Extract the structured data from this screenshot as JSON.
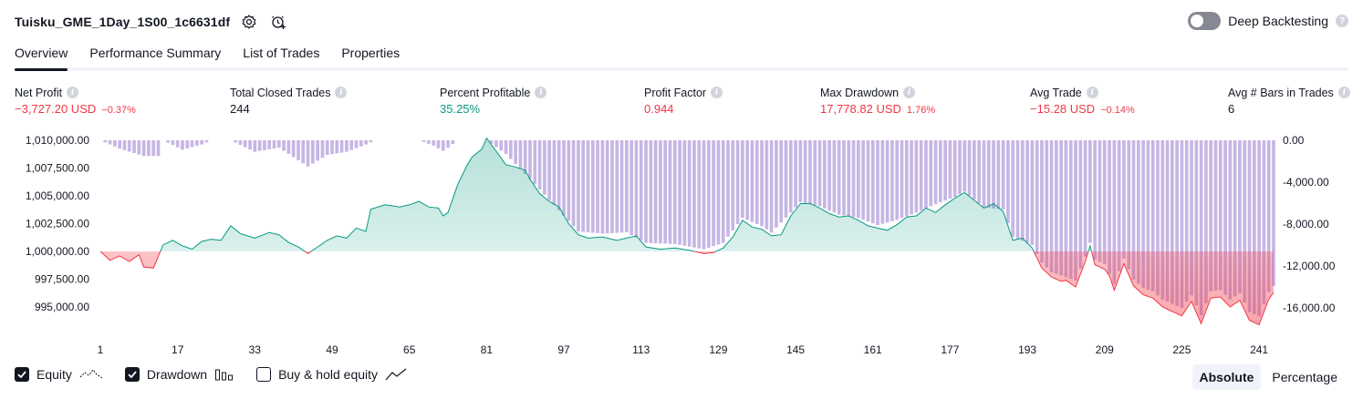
{
  "header": {
    "title": "Tuisku_GME_1Day_1S00_1c6631df",
    "settings_icon": "gear-icon",
    "alert_icon": "add-alert-icon"
  },
  "deep_backtesting": {
    "label": "Deep Backtesting",
    "enabled": false,
    "help_icon": "question-icon"
  },
  "tabs": [
    {
      "label": "Overview",
      "active": true
    },
    {
      "label": "Performance Summary",
      "active": false
    },
    {
      "label": "List of Trades",
      "active": false
    },
    {
      "label": "Properties",
      "active": false
    }
  ],
  "stats": {
    "net_profit": {
      "label": "Net Profit",
      "value": "−3,727.20 USD",
      "pct": "−0.37%"
    },
    "total_closed_trades": {
      "label": "Total Closed Trades",
      "value": "244"
    },
    "percent_profitable": {
      "label": "Percent Profitable",
      "value": "35.25%"
    },
    "profit_factor": {
      "label": "Profit Factor",
      "value": "0.944"
    },
    "max_drawdown": {
      "label": "Max Drawdown",
      "value": "17,778.82 USD",
      "pct": "1.76%"
    },
    "avg_trade": {
      "label": "Avg Trade",
      "value": "−15.28 USD",
      "pct": "−0.14%"
    },
    "avg_bars": {
      "label": "Avg # Bars in Trades",
      "value": "6"
    }
  },
  "chart_data": {
    "type": "area",
    "baseline": 1000000,
    "y_left_ticks": [
      "1,010,000.00",
      "1,007,500.00",
      "1,005,000.00",
      "1,002,500.00",
      "1,000,000.00",
      "997,500.00",
      "995,000.00"
    ],
    "y_left_range": [
      995000,
      1010000
    ],
    "y_right_ticks": [
      "0.00",
      "-4,000.00",
      "-8,000.00",
      "-12,000.00",
      "-16,000.00"
    ],
    "y_right_range": [
      -16000,
      0
    ],
    "x_ticks": [
      "1",
      "17",
      "33",
      "49",
      "65",
      "81",
      "97",
      "113",
      "129",
      "145",
      "161",
      "177",
      "193",
      "209",
      "225",
      "241"
    ],
    "x_range": [
      1,
      244
    ],
    "equity_keypoints": [
      [
        1,
        1000000
      ],
      [
        3,
        999200
      ],
      [
        5,
        999600
      ],
      [
        7,
        999100
      ],
      [
        9,
        999700
      ],
      [
        10,
        998600
      ],
      [
        12,
        998500
      ],
      [
        14,
        1000600
      ],
      [
        16,
        1001000
      ],
      [
        18,
        1000500
      ],
      [
        20,
        1000200
      ],
      [
        22,
        1000900
      ],
      [
        24,
        1001100
      ],
      [
        26,
        1001000
      ],
      [
        28,
        1002300
      ],
      [
        30,
        1001600
      ],
      [
        33,
        1001200
      ],
      [
        36,
        1001700
      ],
      [
        38,
        1001500
      ],
      [
        40,
        1000800
      ],
      [
        42,
        1000400
      ],
      [
        44,
        999800
      ],
      [
        46,
        1000400
      ],
      [
        48,
        1001000
      ],
      [
        50,
        1001400
      ],
      [
        52,
        1001200
      ],
      [
        54,
        1002100
      ],
      [
        56,
        1001800
      ],
      [
        57,
        1003800
      ],
      [
        60,
        1004200
      ],
      [
        63,
        1004000
      ],
      [
        65,
        1004200
      ],
      [
        67,
        1004500
      ],
      [
        69,
        1004000
      ],
      [
        71,
        1003900
      ],
      [
        72,
        1003200
      ],
      [
        73,
        1003500
      ],
      [
        75,
        1006000
      ],
      [
        77,
        1007800
      ],
      [
        78,
        1008500
      ],
      [
        80,
        1009200
      ],
      [
        81,
        1010200
      ],
      [
        83,
        1009000
      ],
      [
        85,
        1007800
      ],
      [
        87,
        1007600
      ],
      [
        89,
        1007300
      ],
      [
        90,
        1006500
      ],
      [
        92,
        1005200
      ],
      [
        94,
        1004500
      ],
      [
        96,
        1004000
      ],
      [
        98,
        1002500
      ],
      [
        100,
        1001500
      ],
      [
        102,
        1001200
      ],
      [
        105,
        1001300
      ],
      [
        108,
        1001000
      ],
      [
        110,
        1001200
      ],
      [
        112,
        1001400
      ],
      [
        114,
        1000400
      ],
      [
        117,
        1000200
      ],
      [
        120,
        1000300
      ],
      [
        123,
        1000100
      ],
      [
        126,
        999800
      ],
      [
        128,
        999900
      ],
      [
        130,
        1000300
      ],
      [
        132,
        1001300
      ],
      [
        134,
        1002800
      ],
      [
        136,
        1002200
      ],
      [
        138,
        1002000
      ],
      [
        140,
        1001400
      ],
      [
        142,
        1001500
      ],
      [
        144,
        1003200
      ],
      [
        146,
        1004300
      ],
      [
        148,
        1004300
      ],
      [
        150,
        1003900
      ],
      [
        152,
        1003400
      ],
      [
        154,
        1003100
      ],
      [
        156,
        1003200
      ],
      [
        158,
        1002800
      ],
      [
        160,
        1002300
      ],
      [
        162,
        1002100
      ],
      [
        164,
        1001900
      ],
      [
        166,
        1002400
      ],
      [
        168,
        1003100
      ],
      [
        170,
        1003200
      ],
      [
        172,
        1003900
      ],
      [
        174,
        1003500
      ],
      [
        176,
        1004200
      ],
      [
        178,
        1004800
      ],
      [
        180,
        1005300
      ],
      [
        182,
        1004600
      ],
      [
        184,
        1003900
      ],
      [
        186,
        1004300
      ],
      [
        188,
        1003600
      ],
      [
        190,
        1001000
      ],
      [
        192,
        1001200
      ],
      [
        194,
        1000300
      ],
      [
        196,
        998500
      ],
      [
        198,
        997700
      ],
      [
        200,
        997300
      ],
      [
        201,
        997400
      ],
      [
        203,
        996800
      ],
      [
        205,
        999100
      ],
      [
        206,
        1000500
      ],
      [
        207,
        998800
      ],
      [
        209,
        998400
      ],
      [
        210,
        997800
      ],
      [
        211,
        996500
      ],
      [
        213,
        998900
      ],
      [
        215,
        996900
      ],
      [
        217,
        996100
      ],
      [
        219,
        995800
      ],
      [
        221,
        995000
      ],
      [
        223,
        994600
      ],
      [
        225,
        994200
      ],
      [
        227,
        995500
      ],
      [
        229,
        993500
      ],
      [
        231,
        995800
      ],
      [
        233,
        995900
      ],
      [
        235,
        995000
      ],
      [
        237,
        995600
      ],
      [
        239,
        993800
      ],
      [
        241,
        993400
      ],
      [
        243,
        995700
      ],
      [
        244,
        996300
      ]
    ],
    "drawdown_keypoints": [
      [
        1,
        0
      ],
      [
        5,
        -800
      ],
      [
        10,
        -1500
      ],
      [
        13,
        -1500
      ],
      [
        14,
        0
      ],
      [
        18,
        -900
      ],
      [
        22,
        -400
      ],
      [
        24,
        0
      ],
      [
        28,
        0
      ],
      [
        33,
        -1100
      ],
      [
        38,
        -700
      ],
      [
        44,
        -2500
      ],
      [
        48,
        -1400
      ],
      [
        52,
        -1100
      ],
      [
        56,
        -400
      ],
      [
        58,
        0
      ],
      [
        67,
        0
      ],
      [
        70,
        -500
      ],
      [
        72,
        -1000
      ],
      [
        73,
        -700
      ],
      [
        75,
        0
      ],
      [
        81,
        0
      ],
      [
        85,
        -1300
      ],
      [
        90,
        -3700
      ],
      [
        94,
        -5700
      ],
      [
        98,
        -7700
      ],
      [
        100,
        -8700
      ],
      [
        105,
        -8900
      ],
      [
        110,
        -8800
      ],
      [
        114,
        -9800
      ],
      [
        120,
        -9900
      ],
      [
        126,
        -10400
      ],
      [
        130,
        -9800
      ],
      [
        134,
        -7400
      ],
      [
        138,
        -8200
      ],
      [
        140,
        -8800
      ],
      [
        144,
        -6900
      ],
      [
        146,
        -5900
      ],
      [
        150,
        -6300
      ],
      [
        154,
        -7100
      ],
      [
        158,
        -7400
      ],
      [
        162,
        -8100
      ],
      [
        166,
        -7600
      ],
      [
        170,
        -6900
      ],
      [
        174,
        -6100
      ],
      [
        178,
        -5400
      ],
      [
        180,
        -4900
      ],
      [
        184,
        -6400
      ],
      [
        188,
        -6600
      ],
      [
        190,
        -9200
      ],
      [
        194,
        -10000
      ],
      [
        196,
        -11700
      ],
      [
        198,
        -12600
      ],
      [
        200,
        -12900
      ],
      [
        203,
        -13400
      ],
      [
        205,
        -11100
      ],
      [
        206,
        -9800
      ],
      [
        207,
        -11400
      ],
      [
        209,
        -11800
      ],
      [
        211,
        -13700
      ],
      [
        213,
        -11300
      ],
      [
        215,
        -13300
      ],
      [
        217,
        -14100
      ],
      [
        219,
        -14400
      ],
      [
        221,
        -15200
      ],
      [
        223,
        -15600
      ],
      [
        225,
        -16000
      ],
      [
        227,
        -14800
      ],
      [
        229,
        -16700
      ],
      [
        231,
        -14400
      ],
      [
        233,
        -14300
      ],
      [
        235,
        -15200
      ],
      [
        237,
        -14600
      ],
      [
        239,
        -16400
      ],
      [
        241,
        -16800
      ],
      [
        243,
        -14500
      ],
      [
        244,
        -13900
      ]
    ],
    "colors": {
      "equity_up": "#089981",
      "equity_down": "#f23645",
      "drawdown": "#b39ddb",
      "grid_text": "#131722"
    }
  },
  "legend": [
    {
      "label": "Equity",
      "checked": true,
      "icon": "equity-line-icon"
    },
    {
      "label": "Drawdown",
      "checked": true,
      "icon": "drawdown-bars-icon"
    },
    {
      "label": "Buy & hold equity",
      "checked": false,
      "icon": "buy-hold-line-icon"
    }
  ],
  "mode": {
    "options": [
      "Absolute",
      "Percentage"
    ],
    "active": "Absolute"
  }
}
